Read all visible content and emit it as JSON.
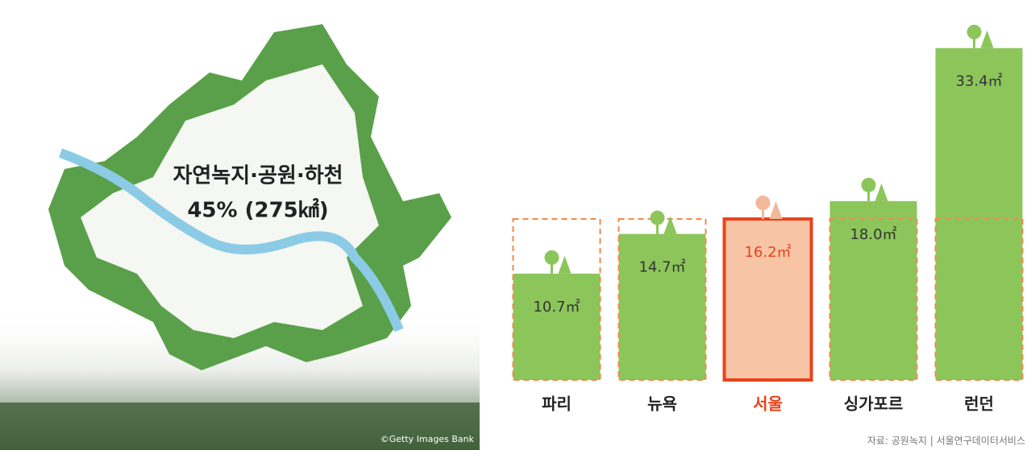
{
  "map_panel": {
    "title": "자연녹지·공원·하천",
    "value_label": "45% (275㎢)",
    "credit": "©Getty Images Bank"
  },
  "chart_data": {
    "type": "bar",
    "categories": [
      "파리",
      "뉴욕",
      "서울",
      "싱가포르",
      "런던"
    ],
    "values": [
      10.7,
      14.7,
      16.2,
      18.0,
      33.4
    ],
    "value_labels": [
      "10.7㎡",
      "14.7㎡",
      "16.2㎡",
      "18.0㎡",
      "33.4㎡"
    ],
    "colors": [
      "#8cc65a",
      "#8cc65a",
      "#f7c5a6",
      "#8cc65a",
      "#8cc65a"
    ],
    "highlight": "서울",
    "highlight_color": "#e8421c",
    "ylim": [
      0,
      35
    ]
  },
  "source": "자료: 공원녹지 | 서울연구데이터서비스"
}
